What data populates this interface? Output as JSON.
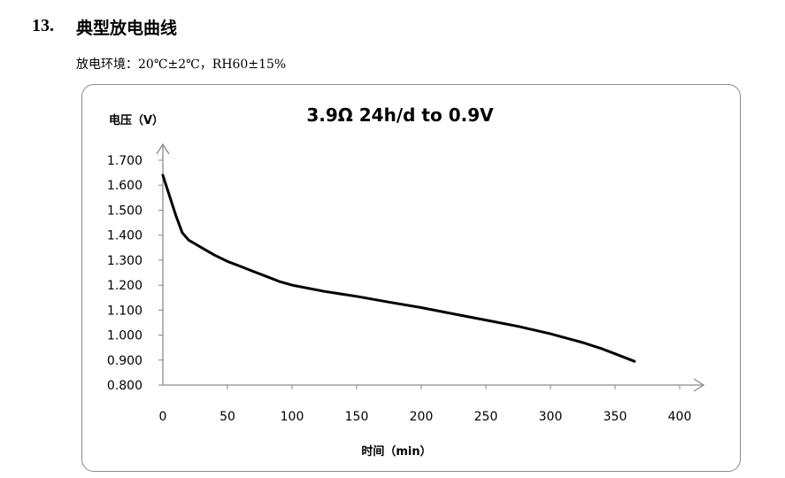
{
  "section": {
    "number": "13.",
    "title": "典型放电曲线"
  },
  "condition": "放电环境：20℃±2℃，RH60±15%",
  "chart_data": {
    "type": "line",
    "title": "3.9Ω 24h/d to 0.9V",
    "ylabel": "电压（V）",
    "xlabel": "时间（min）",
    "xlim": [
      0,
      400
    ],
    "ylim": [
      0.8,
      1.7
    ],
    "x_ticks": [
      "0",
      "50",
      "100",
      "150",
      "200",
      "250",
      "300",
      "350",
      "400"
    ],
    "y_ticks": [
      "0.800",
      "0.900",
      "1.000",
      "1.100",
      "1.200",
      "1.300",
      "1.400",
      "1.500",
      "1.600",
      "1.700"
    ],
    "grid": false,
    "legend": "none",
    "line_color": "#000000",
    "series": [
      {
        "x": [
          0,
          5,
          10,
          15,
          20,
          25,
          30,
          40,
          50,
          60,
          70,
          80,
          90,
          100,
          125,
          150,
          175,
          200,
          225,
          250,
          275,
          300,
          325,
          340,
          350,
          365
        ],
        "y": [
          1.64,
          1.56,
          1.48,
          1.41,
          1.38,
          1.365,
          1.35,
          1.32,
          1.295,
          1.275,
          1.255,
          1.235,
          1.215,
          1.2,
          1.175,
          1.155,
          1.132,
          1.11,
          1.085,
          1.06,
          1.035,
          1.005,
          0.97,
          0.945,
          0.925,
          0.895
        ]
      }
    ]
  }
}
